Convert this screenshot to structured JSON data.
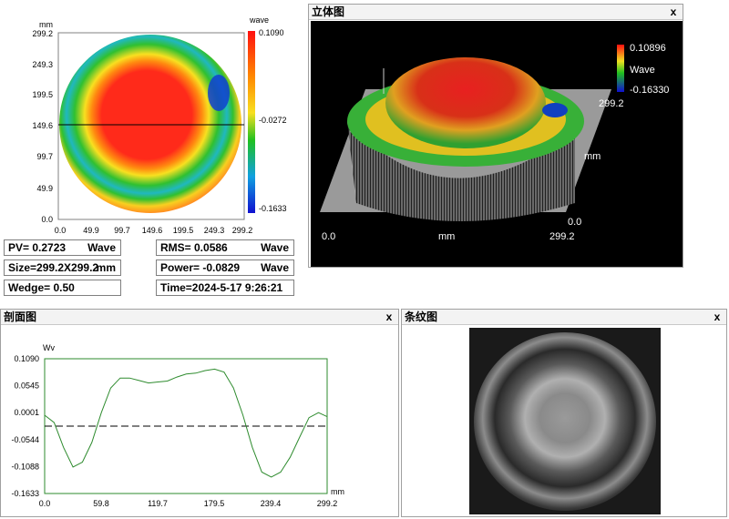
{
  "contour": {
    "y_unit": "mm",
    "x_unit": "mm",
    "y_ticks": [
      "299.2",
      "249.3",
      "199.5",
      "149.6",
      "99.7",
      "49.9",
      "0.0"
    ],
    "x_ticks": [
      "0.0",
      "49.9",
      "99.7",
      "149.6",
      "199.5",
      "249.3",
      "299.2"
    ],
    "colorbar": {
      "title": "wave",
      "max": "0.1090",
      "mid": "-0.0272",
      "min": "-0.1633"
    },
    "colors": {
      "red": "#ff2020",
      "yellow": "#f8e020",
      "green": "#20c020",
      "blue": "#1020d0"
    }
  },
  "stats": {
    "pv": {
      "label": "PV= 0.2723",
      "unit": "Wave"
    },
    "rms": {
      "label": "RMS= 0.0586",
      "unit": "Wave"
    },
    "size": {
      "label": "Size=299.2X299.2",
      "unit": "mm"
    },
    "power": {
      "label": "Power= -0.0829",
      "unit": "Wave"
    },
    "wedge": {
      "label": "Wedge= 0.50"
    },
    "time": {
      "label": "Time=2024-5-17 9:26:21"
    }
  },
  "view3d": {
    "title": "立体图",
    "close": "x",
    "legend": {
      "max": "0.10896",
      "label": "Wave",
      "min": "-0.16330"
    },
    "axis_right": {
      "top": "299.2",
      "unit": "mm",
      "bottom": "0.0"
    },
    "axis_bottom": {
      "left": "0.0",
      "unit": "mm",
      "right": "299.2"
    }
  },
  "profile": {
    "title": "剖面图",
    "close": "x",
    "y_unit": "Wv",
    "x_unit": "mm",
    "line_color": "#2e8b2e"
  },
  "fringe": {
    "title": "条纹图",
    "close": "x"
  },
  "chart_data": {
    "type": "line",
    "title": "",
    "xlabel": "mm",
    "ylabel": "Wv",
    "xlim": [
      0,
      299.2
    ],
    "ylim": [
      -0.1633,
      0.109
    ],
    "x_ticks": [
      0.0,
      59.8,
      119.7,
      179.5,
      239.4,
      299.2
    ],
    "x_tick_labels": [
      "0.0",
      "59.8",
      "119.7",
      "179.5",
      "239.4",
      "299.2"
    ],
    "y_ticks": [
      0.109,
      0.0545,
      0.0001,
      -0.0544,
      -0.1088,
      -0.1633
    ],
    "y_tick_labels": [
      "0.1090",
      "0.0545",
      "0.0001",
      "-0.0544",
      "-0.1088",
      "-0.1633"
    ],
    "reference_line": -0.0272,
    "series": [
      {
        "x": [
          0,
          10,
          20,
          30,
          40,
          50,
          60,
          70,
          80,
          90,
          100,
          110,
          120,
          130,
          140,
          150,
          160,
          170,
          180,
          190,
          200,
          210,
          220,
          230,
          240,
          250,
          260,
          270,
          280,
          290,
          299.2
        ],
        "values": [
          -0.005,
          -0.02,
          -0.07,
          -0.11,
          -0.1,
          -0.06,
          0.0,
          0.05,
          0.07,
          0.07,
          0.065,
          0.06,
          0.062,
          0.064,
          0.072,
          0.078,
          0.08,
          0.085,
          0.088,
          0.082,
          0.05,
          -0.005,
          -0.07,
          -0.12,
          -0.13,
          -0.12,
          -0.09,
          -0.05,
          -0.01,
          0.0,
          -0.008
        ]
      }
    ]
  }
}
